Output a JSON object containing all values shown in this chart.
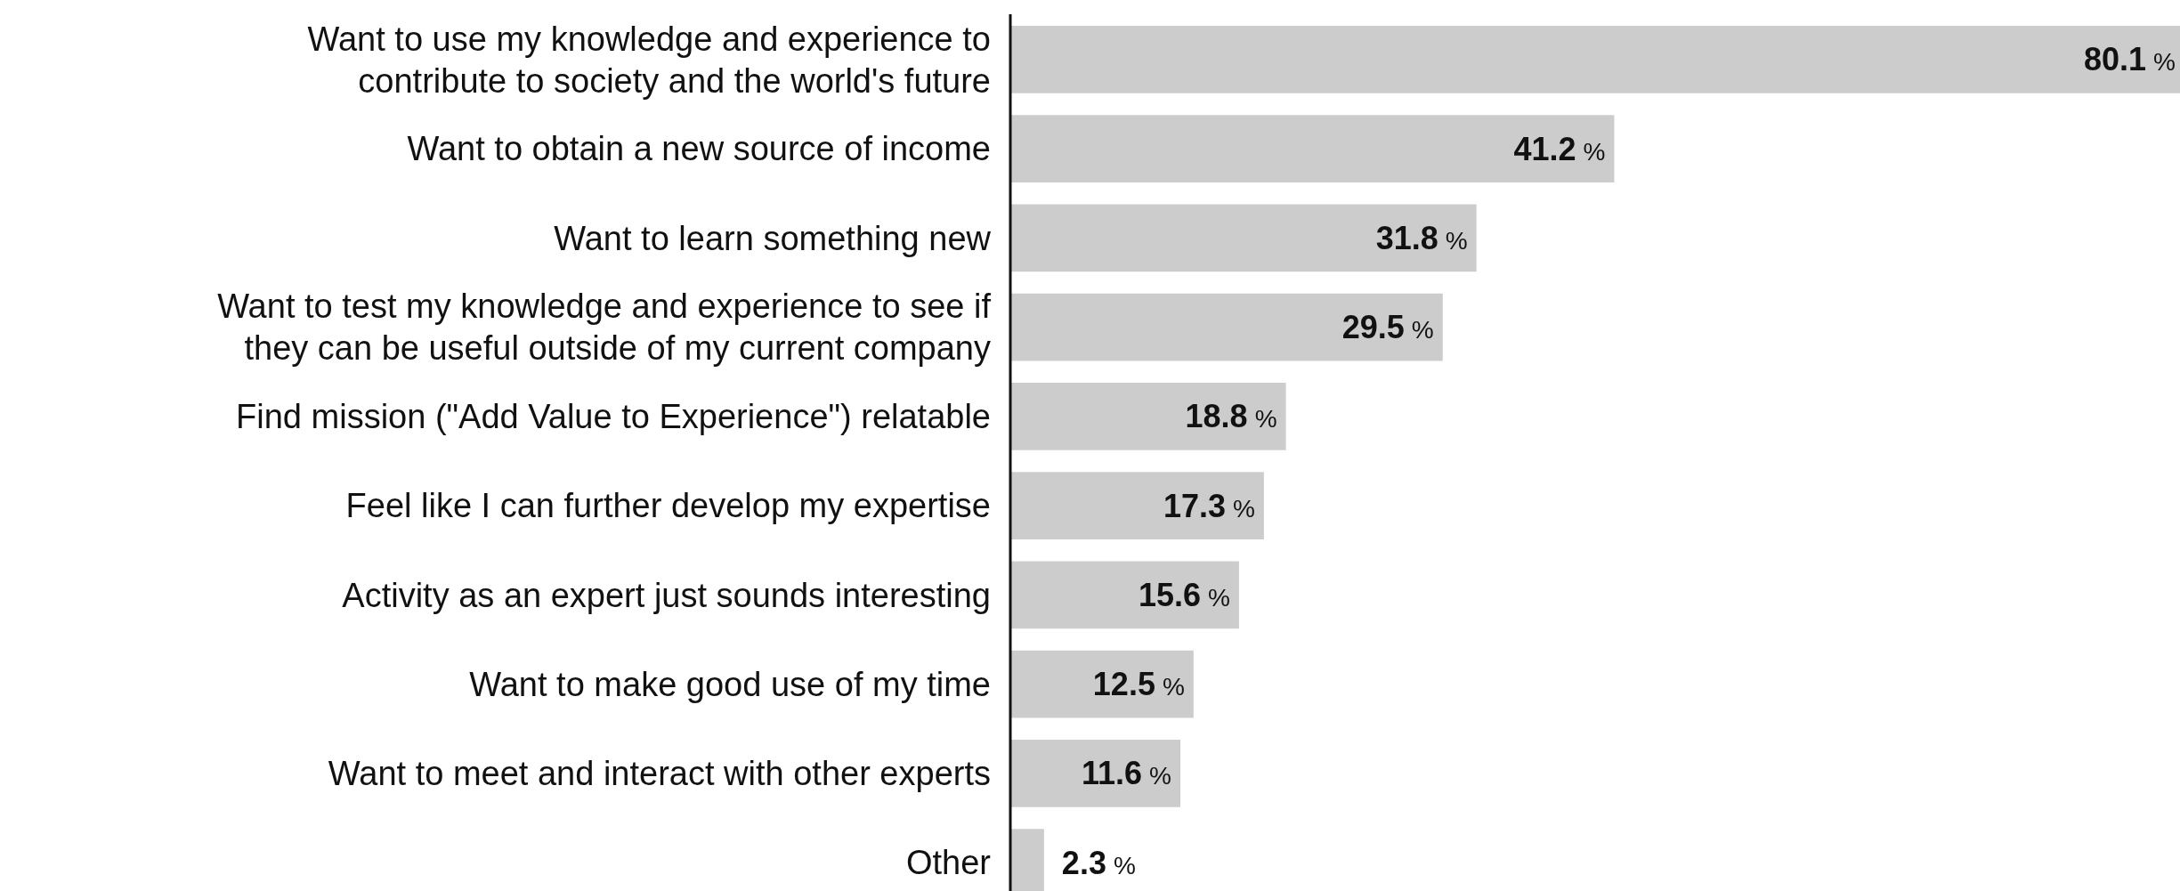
{
  "chart_data": {
    "type": "bar",
    "orientation": "horizontal",
    "color": "#cccccc",
    "categories": [
      "Want to use my knowledge and experience to contribute to society and the world's future",
      "Want to obtain a new source of income",
      "Want to learn something new",
      "Want to test my knowledge and experience to see if they can be useful outside of my current company",
      "Find mission (\"Add Value to Experience\") relatable",
      "Feel like I can further develop my expertise",
      "Activity as an expert just sounds interesting",
      "Want to make good use of my time",
      "Want to meet and interact with other experts",
      "Other"
    ],
    "values": [
      80.1,
      41.2,
      31.8,
      29.5,
      18.8,
      17.3,
      15.6,
      12.5,
      11.6,
      2.3
    ],
    "value_labels": [
      "80.1 %",
      "41.2 %",
      "31.8 %",
      "29.5 %",
      "18.8 %",
      "17.3 %",
      "15.6 %",
      "12.5 %",
      "11.6 %",
      "2.3 %"
    ]
  }
}
